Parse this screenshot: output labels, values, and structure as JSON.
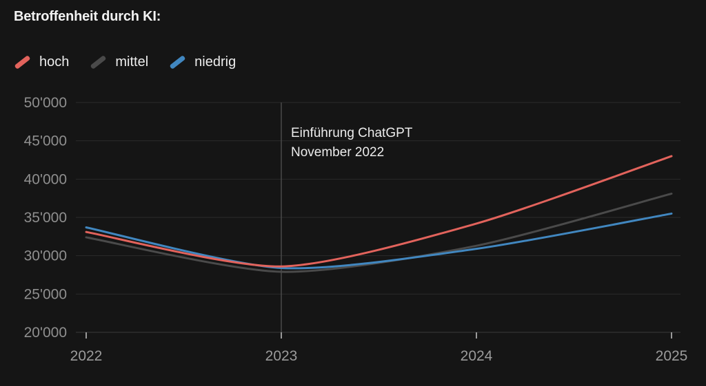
{
  "title": "Betroffenheit durch KI:",
  "legend": {
    "items": [
      {
        "label": "hoch",
        "color": "#e2635c"
      },
      {
        "label": "mittel",
        "color": "#4a4a4a"
      },
      {
        "label": "niedrig",
        "color": "#4187c0"
      }
    ]
  },
  "annotation": {
    "line1": "Einführung ChatGPT",
    "line2": "November 2022"
  },
  "chart_data": {
    "type": "line",
    "title": "Betroffenheit durch KI:",
    "x": [
      2022,
      2023,
      2024,
      2025
    ],
    "xticks": [
      {
        "value": 2022,
        "label": "2022"
      },
      {
        "value": 2023,
        "label": "2023"
      },
      {
        "value": 2024,
        "label": "2024"
      },
      {
        "value": 2025,
        "label": "2025"
      }
    ],
    "yticks": [
      {
        "value": 20000,
        "label": "20'000"
      },
      {
        "value": 25000,
        "label": "25'000"
      },
      {
        "value": 30000,
        "label": "30'000"
      },
      {
        "value": 35000,
        "label": "35'000"
      },
      {
        "value": 40000,
        "label": "40'000"
      },
      {
        "value": 45000,
        "label": "45'000"
      },
      {
        "value": 50000,
        "label": "50'000"
      }
    ],
    "ylim": [
      20000,
      50000
    ],
    "xlabel": "",
    "ylabel": "",
    "grid": true,
    "legend_position": "top-left",
    "series": [
      {
        "name": "hoch",
        "color": "#e2635c",
        "values": [
          33100,
          28600,
          34200,
          43000
        ]
      },
      {
        "name": "mittel",
        "color": "#4a4a4a",
        "values": [
          32400,
          27900,
          31300,
          38100
        ]
      },
      {
        "name": "niedrig",
        "color": "#4187c0",
        "values": [
          33700,
          28400,
          30900,
          35500
        ]
      }
    ],
    "marker": {
      "x": 2023,
      "label_line1": "Einführung ChatGPT",
      "label_line2": "November 2022"
    }
  },
  "colors": {
    "background": "#151515",
    "title_text": "#f2f2f2",
    "legend_text": "#ededed",
    "axis_text_y": "#8f8f8f",
    "axis_text_x": "#9b9b9b",
    "gridline": "#2b2b2b",
    "baseline": "#3a3a3a",
    "marker_line": "#4a4a4a",
    "tick": "#9a9a9a",
    "annotation_text": "#ececec"
  }
}
